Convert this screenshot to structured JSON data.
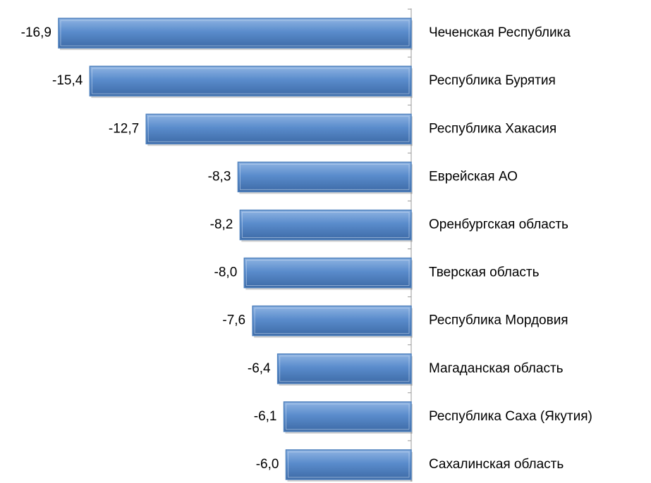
{
  "chart_data": {
    "type": "hbar",
    "categories": [
      "Чеченская Республика",
      "Республика Бурятия",
      "Республика Хакасия",
      "Еврейская АО",
      "Оренбургская область",
      "Тверская область",
      "Республика Мордовия",
      "Магаданская область",
      "Республика Саха (Якутия)",
      "Сахалинская область"
    ],
    "values": [
      -16.9,
      -15.4,
      -12.7,
      -8.3,
      -8.2,
      -8.0,
      -7.6,
      -6.4,
      -6.1,
      -6.0
    ],
    "value_labels": [
      "-16,9",
      "-15,4",
      "-12,7",
      "-8,3",
      "-8,2",
      "-8,0",
      "-7,6",
      "-6,4",
      "-6,1",
      "-6,0"
    ],
    "color": "#4f81bd",
    "xlim": [
      -17,
      0
    ]
  }
}
